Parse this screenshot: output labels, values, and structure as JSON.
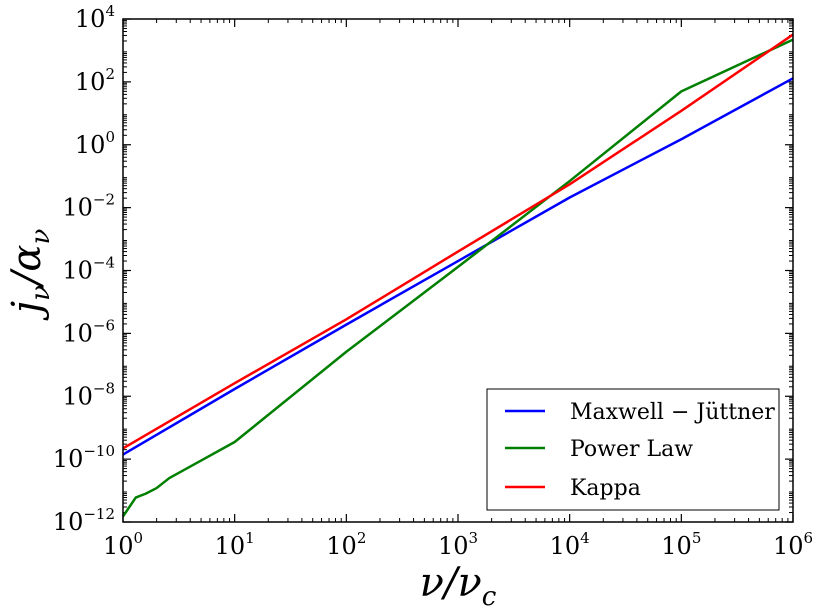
{
  "chart_data": {
    "type": "line",
    "xscale": "log",
    "yscale": "log",
    "xlim": [
      1,
      1000000
    ],
    "ylim": [
      1e-12,
      10000
    ],
    "xlabel": "ν/ν_c",
    "ylabel": "j_ν/α_ν",
    "xlabel_parts": {
      "main": "ν/ν",
      "sub": "c"
    },
    "ylabel_parts": {
      "j": "j",
      "j_sub": "ν",
      "slash": "/α",
      "a_sub": "ν"
    },
    "xticks": [
      {
        "value": 1,
        "base": "10",
        "exp": "0"
      },
      {
        "value": 10,
        "base": "10",
        "exp": "1"
      },
      {
        "value": 100,
        "base": "10",
        "exp": "2"
      },
      {
        "value": 1000,
        "base": "10",
        "exp": "3"
      },
      {
        "value": 10000,
        "base": "10",
        "exp": "4"
      },
      {
        "value": 100000,
        "base": "10",
        "exp": "5"
      },
      {
        "value": 1000000,
        "base": "10",
        "exp": "6"
      }
    ],
    "yticks": [
      {
        "value": 1e-12,
        "base": "10",
        "exp": "−12"
      },
      {
        "value": 1e-10,
        "base": "10",
        "exp": "−10"
      },
      {
        "value": 1e-08,
        "base": "10",
        "exp": "−8"
      },
      {
        "value": 1e-06,
        "base": "10",
        "exp": "−6"
      },
      {
        "value": 0.0001,
        "base": "10",
        "exp": "−4"
      },
      {
        "value": 0.01,
        "base": "10",
        "exp": "−2"
      },
      {
        "value": 1,
        "base": "10",
        "exp": "0"
      },
      {
        "value": 100,
        "base": "10",
        "exp": "2"
      },
      {
        "value": 10000,
        "base": "10",
        "exp": "4"
      }
    ],
    "legend_position": "lower-right",
    "series": [
      {
        "name": "Maxwell − Jüttner",
        "color": "#0000ff",
        "x": [
          1,
          10,
          100,
          1000,
          10000,
          100000,
          1000000
        ],
        "y": [
          1.4e-10,
          1.7e-08,
          1.9e-06,
          0.0002,
          0.021,
          1.5,
          130
        ]
      },
      {
        "name": "Power Law",
        "color": "#007f00",
        "x": [
          1,
          1.3,
          1.6,
          2,
          2.6,
          5,
          10,
          100,
          1000,
          10000,
          100000,
          1000000
        ],
        "y": [
          1.5e-12,
          6e-12,
          8e-12,
          1.2e-11,
          2.5e-11,
          9e-11,
          3.5e-10,
          2.6e-07,
          0.00013,
          0.07,
          50,
          2200
        ]
      },
      {
        "name": "Kappa",
        "color": "#ff0000",
        "x": [
          1,
          10,
          100,
          1000,
          10000,
          100000,
          1000000
        ],
        "y": [
          2.2e-10,
          2.6e-08,
          2.8e-06,
          0.0004,
          0.055,
          12,
          3200
        ]
      }
    ]
  }
}
